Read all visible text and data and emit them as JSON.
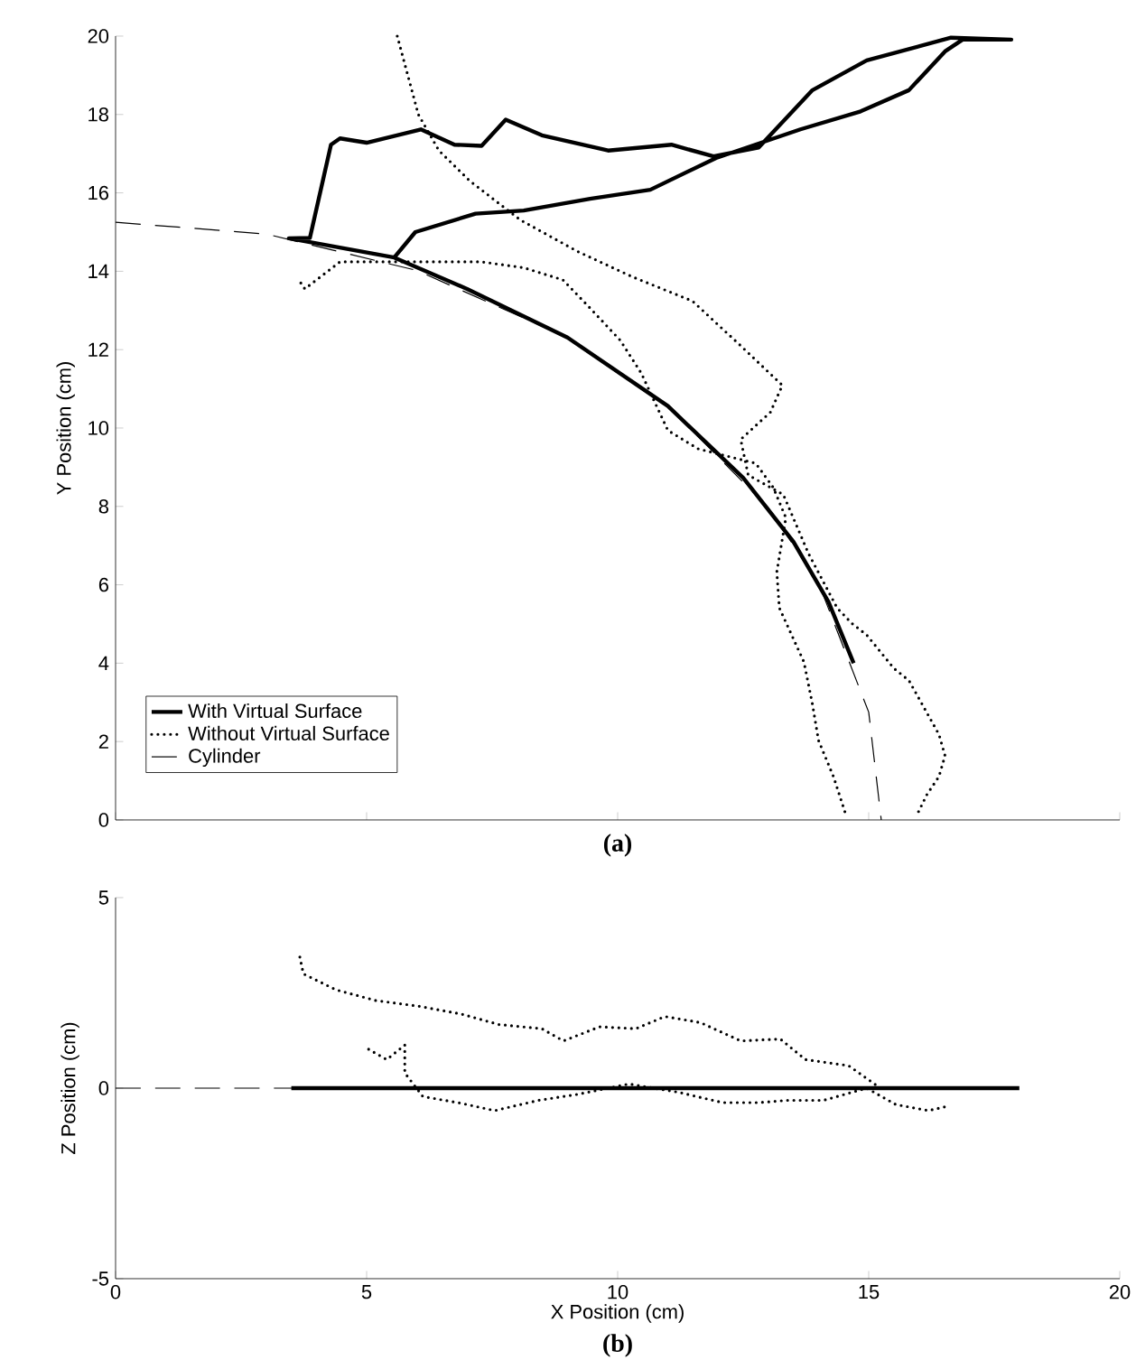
{
  "chart_data": [
    {
      "type": "line",
      "ylabel": "Y Position (cm)",
      "annotations": [
        "(a)"
      ],
      "xlim": [
        0,
        20
      ],
      "ylim": [
        0,
        20
      ],
      "xticks": [
        0,
        5,
        10,
        15,
        20
      ],
      "yticks": [
        0,
        2,
        4,
        6,
        8,
        10,
        12,
        14,
        16,
        18,
        20
      ],
      "tick_labels": "y",
      "legend": "bottom left",
      "series": [
        {
          "name": "With Virtual Surface",
          "color": "#000000",
          "line_style": "solid",
          "x": [
            14.7,
            14.2,
            13.5,
            12.5,
            11.0,
            9.0,
            7.0,
            5.55,
            3.45,
            3.87,
            4.29,
            4.47,
            5.0,
            6.08,
            6.75,
            7.29,
            7.77,
            8.49,
            9.81,
            11.07,
            11.91,
            12.81,
            13.88,
            14.96,
            16.64,
            17.84,
            16.87,
            16.52,
            15.8,
            14.84,
            13.64,
            11.96,
            10.65,
            9.45,
            8.13,
            7.17,
            5.97,
            5.55
          ],
          "values": [
            4.0,
            5.56,
            7.1,
            8.73,
            10.56,
            12.31,
            13.55,
            14.35,
            14.84,
            14.85,
            17.23,
            17.39,
            17.28,
            17.62,
            17.23,
            17.2,
            17.87,
            17.47,
            17.08,
            17.23,
            16.93,
            17.16,
            18.62,
            19.38,
            19.96,
            19.91,
            19.91,
            19.61,
            18.62,
            18.08,
            17.62,
            16.89,
            16.08,
            15.85,
            15.55,
            15.47,
            15.0,
            14.35
          ]
        },
        {
          "name": "Without Virtual Surface",
          "color": "#000000",
          "line_style": "dotted",
          "x": [
            5.61,
            6.03,
            6.44,
            7.05,
            8.06,
            9.21,
            10.29,
            11.49,
            12.45,
            13.28,
            13.04,
            12.45,
            12.6,
            13.3,
            13.8,
            14.37,
            14.66,
            14.96,
            15.5,
            15.8,
            16.4,
            16.52,
            16.4,
            16.16,
            15.98,
            null,
            3.69,
            3.77,
            4.47,
            6.09,
            7.29,
            8.13,
            8.91,
            9.45,
            10.05,
            10.47,
            11.0,
            11.6,
            12.75,
            13.1,
            13.35,
            13.17,
            13.22,
            13.71,
            13.88,
            14.0,
            14.3,
            14.54
          ],
          "values": [
            20.0,
            18.0,
            17.08,
            16.31,
            15.31,
            14.5,
            13.86,
            13.24,
            12.1,
            11.09,
            10.4,
            9.71,
            8.8,
            8.3,
            6.8,
            5.41,
            5.02,
            4.72,
            3.87,
            3.56,
            2.18,
            1.64,
            1.11,
            0.65,
            0.18,
            null,
            13.7,
            13.55,
            14.24,
            14.24,
            14.24,
            14.09,
            13.78,
            13.06,
            12.24,
            11.4,
            9.94,
            9.47,
            9.1,
            8.48,
            7.71,
            6.33,
            5.41,
            4.03,
            2.95,
            2.03,
            1.1,
            0.15
          ]
        },
        {
          "name": "Cylinder",
          "color": "#000000",
          "line_style": "dashed",
          "x": [
            0,
            3,
            6,
            9,
            11,
            13,
            14,
            15,
            15.25
          ],
          "values": [
            15.25,
            14.95,
            14.02,
            12.31,
            10.56,
            7.97,
            6.05,
            2.75,
            0
          ]
        }
      ]
    },
    {
      "type": "line",
      "xlabel": "X Position (cm)",
      "ylabel": "Z Position (cm)",
      "annotations": [
        "(b)"
      ],
      "xlim": [
        0,
        20
      ],
      "ylim": [
        -5,
        5
      ],
      "xticks": [
        0,
        5,
        10,
        15,
        20
      ],
      "yticks": [
        -5,
        0,
        5
      ],
      "series": [
        {
          "color": "#000000",
          "line_style": "dashed",
          "x": [
            0,
            15.25
          ],
          "values": [
            0,
            0
          ]
        },
        {
          "color": "#000000",
          "line_style": "dotted",
          "x": [
            3.67,
            3.74,
            4.39,
            5.18,
            6.04,
            6.9,
            7.63,
            8.49,
            8.92,
            9.64,
            10.36,
            10.94,
            11.65,
            12.45,
            13.24,
            13.74,
            14.6,
            15.18,
            null,
            5.04,
            5.4,
            5.76,
            5.76,
            6.12,
            6.9,
            7.55,
            8.42,
            9.21,
            10.22,
            11.22,
            12.09,
            12.81,
            13.38,
            14.1,
            14.96,
            15.54,
            16.19,
            16.55
          ],
          "values": [
            3.44,
            3.0,
            2.58,
            2.3,
            2.15,
            1.94,
            1.67,
            1.56,
            1.24,
            1.61,
            1.56,
            1.88,
            1.72,
            1.24,
            1.29,
            0.75,
            0.59,
            0.05,
            null,
            1.02,
            0.75,
            1.13,
            0.4,
            -0.22,
            -0.4,
            -0.59,
            -0.32,
            -0.16,
            0.11,
            -0.11,
            -0.38,
            -0.38,
            -0.32,
            -0.32,
            0,
            -0.43,
            -0.59,
            -0.48
          ]
        },
        {
          "color": "#000000",
          "line_style": "solid",
          "x": [
            3.5,
            18
          ],
          "values": [
            0,
            0
          ]
        }
      ]
    }
  ]
}
